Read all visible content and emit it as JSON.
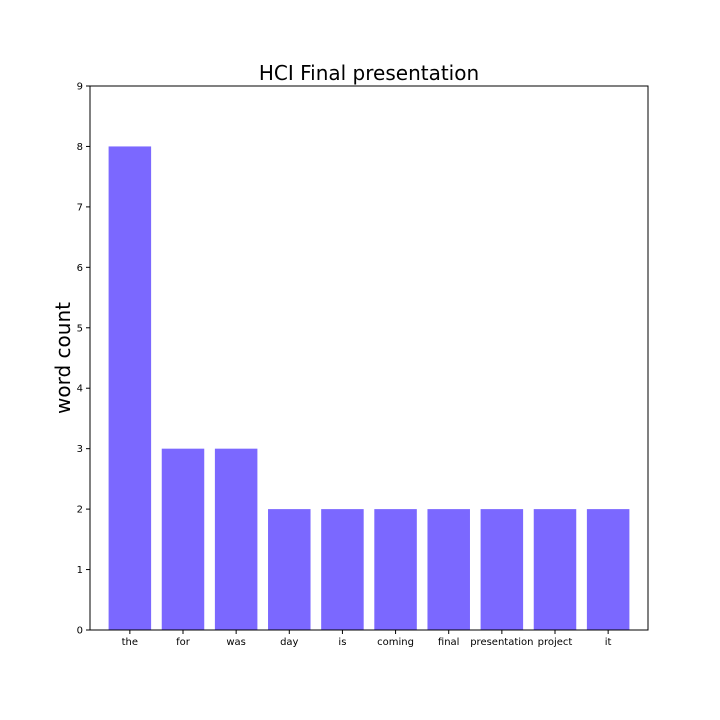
{
  "chart_data": {
    "type": "bar",
    "title": "HCI Final presentation",
    "xlabel": "",
    "ylabel": "word count",
    "categories": [
      "the",
      "for",
      "was",
      "day",
      "is",
      "coming",
      "final",
      "presentation",
      "project",
      "it"
    ],
    "values": [
      8,
      3,
      3,
      2,
      2,
      2,
      2,
      2,
      2,
      2
    ],
    "ylim": [
      0,
      9
    ],
    "yticks": [
      "0",
      "1",
      "2",
      "3",
      "4",
      "5",
      "6",
      "7",
      "8",
      "9"
    ],
    "bar_color": "#7b68ff",
    "grid": false,
    "legend": "none"
  }
}
